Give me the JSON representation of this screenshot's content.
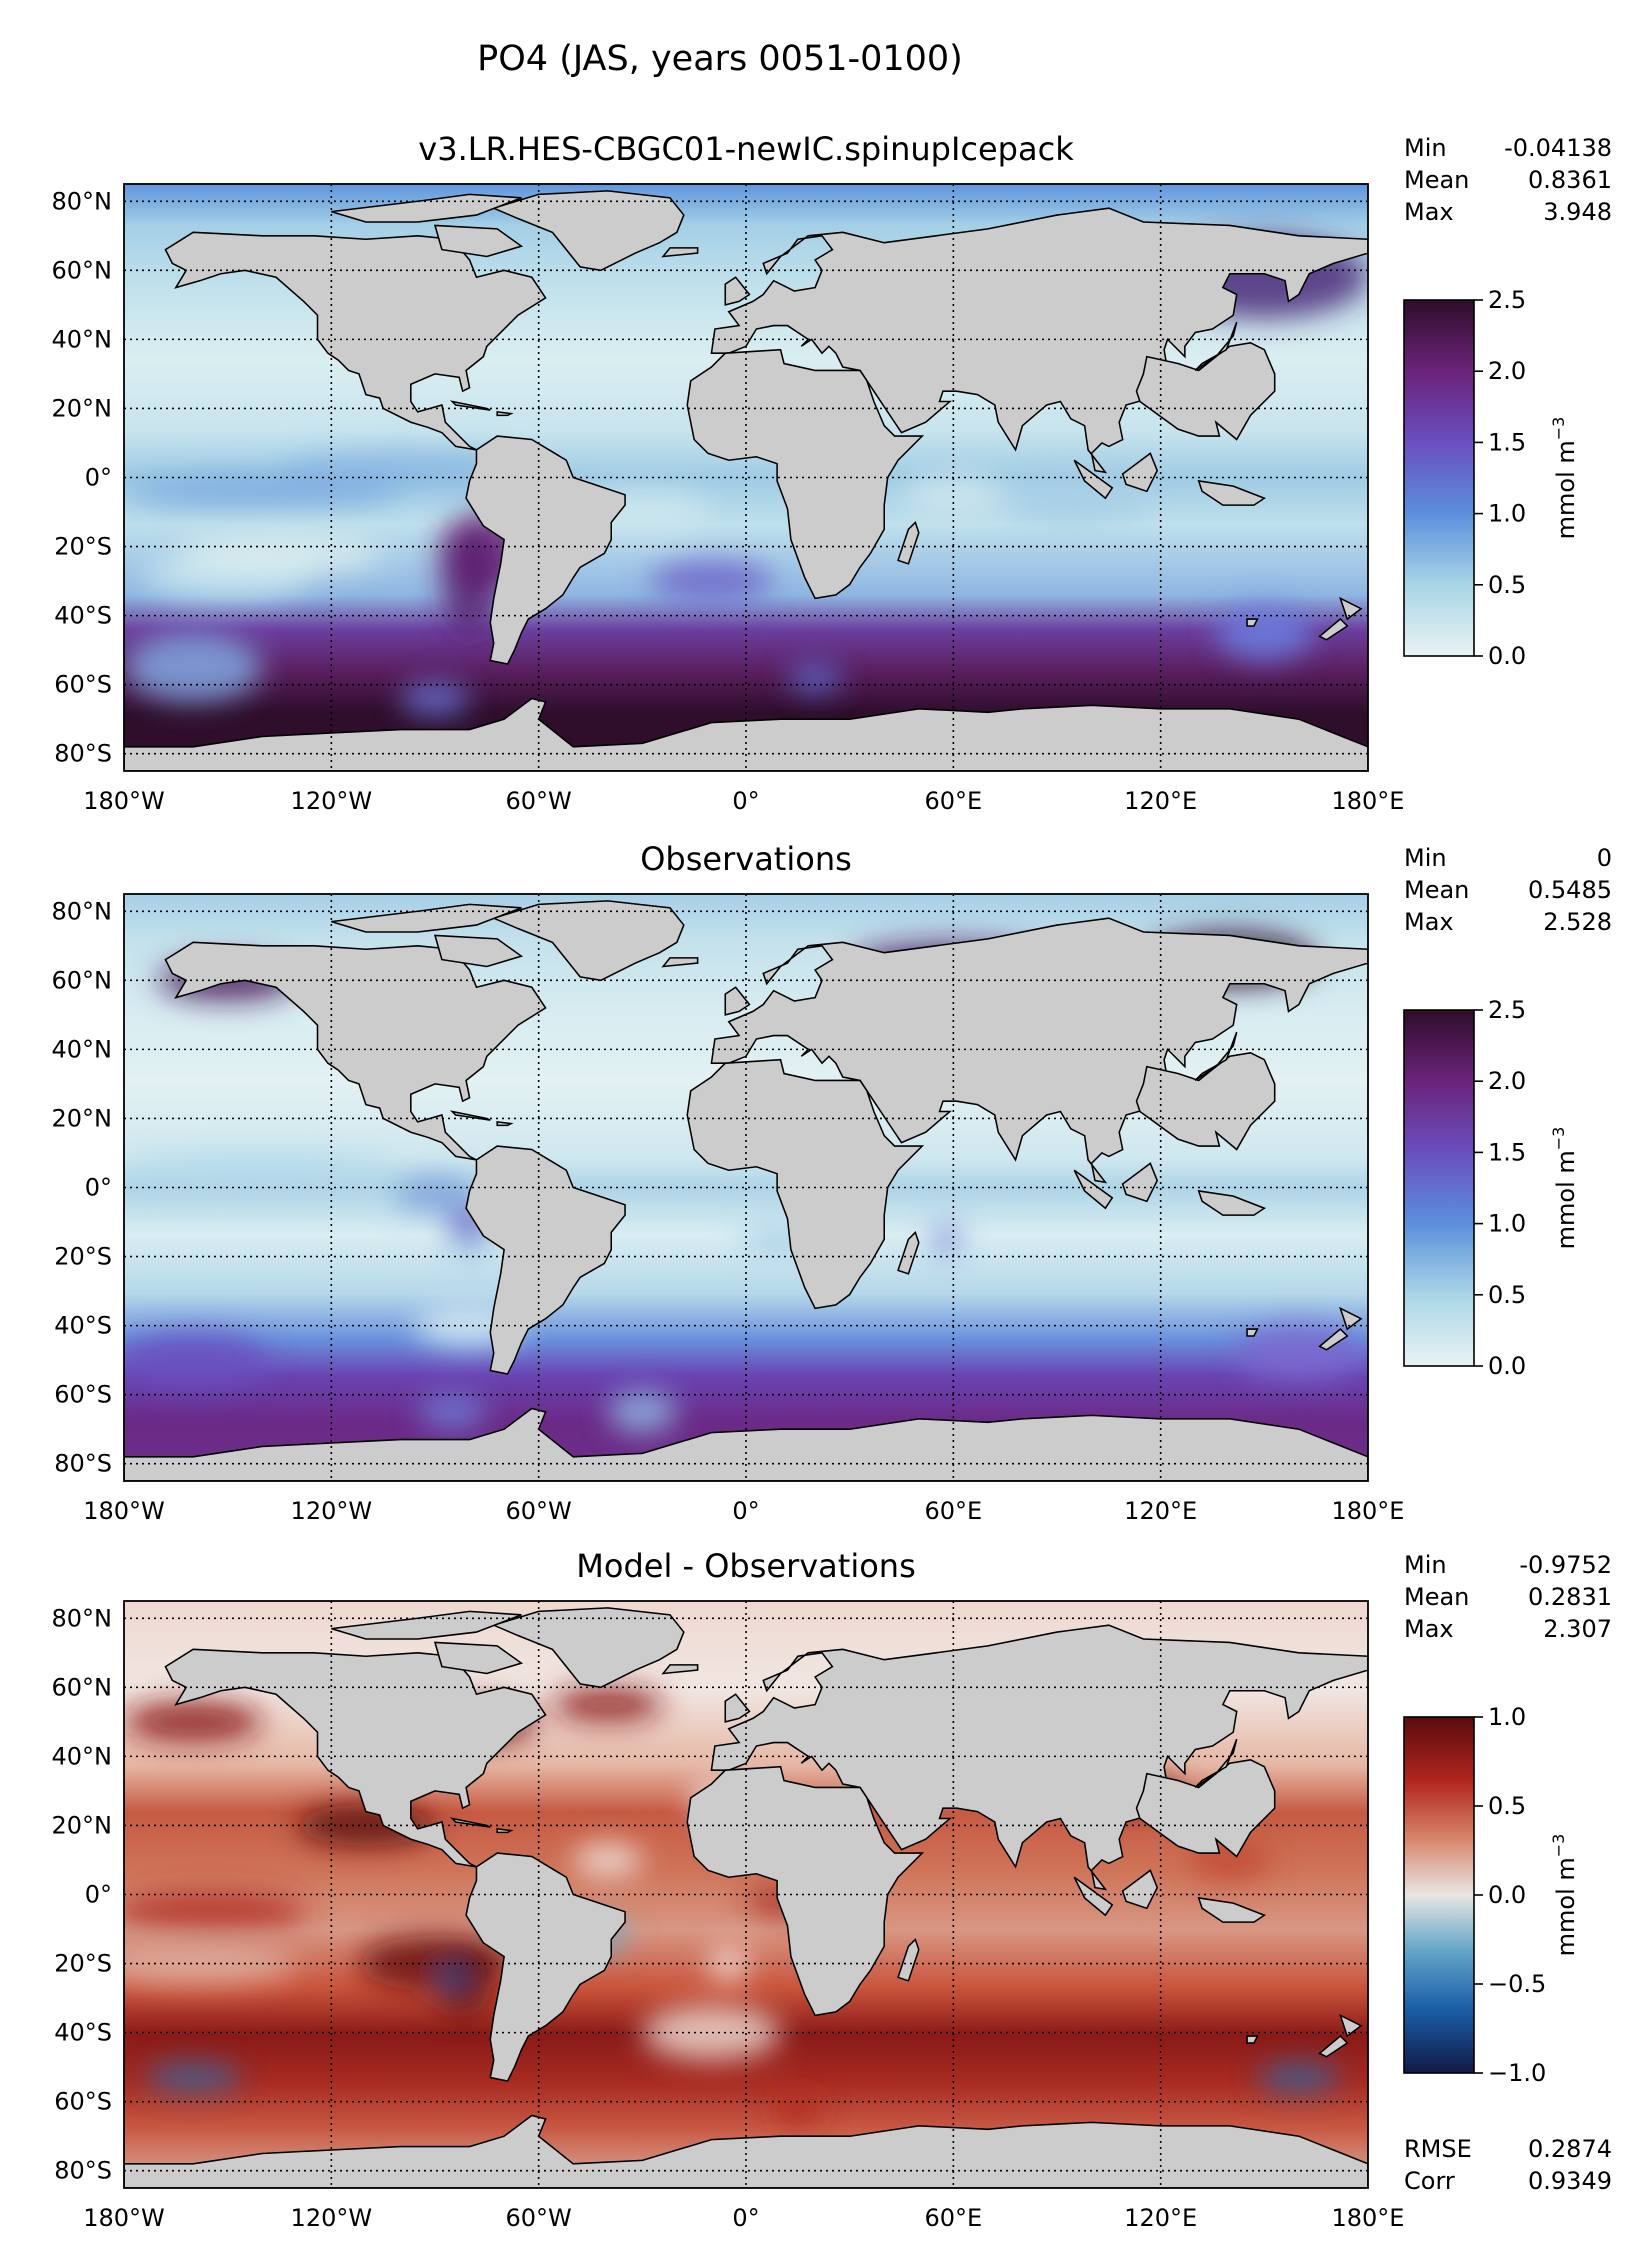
{
  "figure": {
    "title": "PO4 (JAS, years 0051-0100)"
  },
  "colors": {
    "land": "#cccccc",
    "coast": "#000000",
    "grid": "#000000"
  },
  "axes": {
    "lon_ticks": [
      "180°W",
      "120°W",
      "60°W",
      "0°",
      "60°E",
      "120°E",
      "180°E"
    ],
    "lat_ticks": [
      "80°N",
      "60°N",
      "40°N",
      "20°N",
      "0°",
      "20°S",
      "40°S",
      "60°S",
      "80°S"
    ]
  },
  "panels": [
    {
      "title": "v3.LR.HES-CBGC01-newIC.spinupIcepack",
      "field": "model",
      "stats": [
        {
          "label": "Min",
          "value": "-0.04138"
        },
        {
          "label": "Mean",
          "value": "0.8361"
        },
        {
          "label": "Max",
          "value": "3.948"
        }
      ],
      "colorbar": {
        "label": "mmol m",
        "label_exp": "−3",
        "ticks": [
          "0.0",
          "0.5",
          "1.0",
          "1.5",
          "2.0",
          "2.5"
        ],
        "range": [
          0.0,
          2.5
        ],
        "colors": [
          "#e9f3f3",
          "#a9d5e6",
          "#5b8fdc",
          "#6a4fc0",
          "#6b237a",
          "#2e0d2a"
        ]
      }
    },
    {
      "title": "Observations",
      "field": "obs",
      "stats": [
        {
          "label": "Min",
          "value": "0"
        },
        {
          "label": "Mean",
          "value": "0.5485"
        },
        {
          "label": "Max",
          "value": "2.528"
        }
      ],
      "colorbar": {
        "label": "mmol m",
        "label_exp": "−3",
        "ticks": [
          "0.0",
          "0.5",
          "1.0",
          "1.5",
          "2.0",
          "2.5"
        ],
        "range": [
          0.0,
          2.5
        ],
        "colors": [
          "#e9f3f3",
          "#a9d5e6",
          "#5b8fdc",
          "#6a4fc0",
          "#6b237a",
          "#2e0d2a"
        ]
      }
    },
    {
      "title": "Model - Observations",
      "field": "diff",
      "stats": [
        {
          "label": "Min",
          "value": "-0.9752"
        },
        {
          "label": "Mean",
          "value": "0.2831"
        },
        {
          "label": "Max",
          "value": "2.307"
        }
      ],
      "extra_stats": [
        {
          "label": "RMSE",
          "value": "0.2874"
        },
        {
          "label": "Corr",
          "value": "0.9349"
        }
      ],
      "colorbar": {
        "label": "mmol m",
        "label_exp": "−3",
        "ticks": [
          "−1.0",
          "−0.5",
          "0.0",
          "0.5",
          "1.0"
        ],
        "range": [
          -1.0,
          1.0
        ],
        "colors": [
          "#121a45",
          "#1a5ea8",
          "#67a8c8",
          "#e8e6e4",
          "#d7846b",
          "#b2261f",
          "#5a0b0f"
        ]
      }
    }
  ]
}
